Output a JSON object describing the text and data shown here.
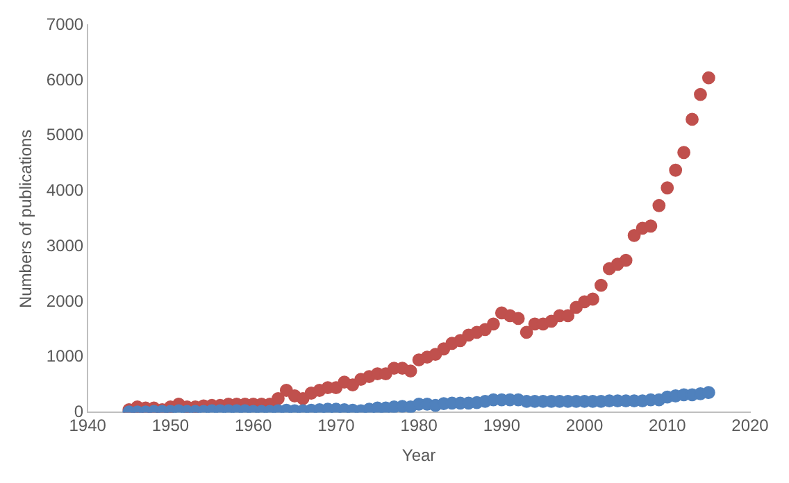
{
  "chart_data": {
    "type": "scatter",
    "xlabel": "Year",
    "ylabel": "Numbers of publications",
    "x": [
      1945,
      1946,
      1947,
      1948,
      1949,
      1950,
      1951,
      1952,
      1953,
      1954,
      1955,
      1956,
      1957,
      1958,
      1959,
      1960,
      1961,
      1962,
      1963,
      1964,
      1965,
      1966,
      1967,
      1968,
      1969,
      1970,
      1971,
      1972,
      1973,
      1974,
      1975,
      1976,
      1977,
      1978,
      1979,
      1980,
      1981,
      1982,
      1983,
      1984,
      1985,
      1986,
      1987,
      1988,
      1989,
      1990,
      1991,
      1992,
      1993,
      1994,
      1995,
      1996,
      1997,
      1998,
      1999,
      2000,
      2001,
      2002,
      2003,
      2004,
      2005,
      2006,
      2007,
      2008,
      2009,
      2010,
      2011,
      2012,
      2013,
      2014,
      2015
    ],
    "series": [
      {
        "color": "#c0504d",
        "values": [
          50,
          100,
          80,
          80,
          50,
          100,
          150,
          100,
          100,
          120,
          130,
          130,
          150,
          150,
          150,
          150,
          150,
          150,
          250,
          400,
          300,
          250,
          350,
          400,
          450,
          450,
          550,
          500,
          600,
          650,
          700,
          700,
          800,
          800,
          750,
          950,
          1000,
          1050,
          1150,
          1250,
          1300,
          1400,
          1450,
          1500,
          1600,
          1800,
          1750,
          1700,
          1450,
          1600,
          1600,
          1650,
          1750,
          1750,
          1900,
          2000,
          2050,
          2300,
          2600,
          2680,
          2750,
          3200,
          3330,
          3370,
          3740,
          4060,
          4380,
          4700,
          5300,
          5750,
          6050
        ]
      },
      {
        "color": "#4f81bd",
        "values": [
          10,
          10,
          10,
          20,
          20,
          20,
          30,
          20,
          20,
          20,
          30,
          30,
          30,
          30,
          30,
          20,
          20,
          20,
          30,
          40,
          30,
          30,
          40,
          50,
          60,
          60,
          50,
          40,
          30,
          60,
          80,
          80,
          100,
          110,
          100,
          150,
          150,
          130,
          160,
          170,
          170,
          170,
          180,
          200,
          230,
          230,
          230,
          230,
          200,
          200,
          200,
          200,
          200,
          200,
          200,
          200,
          200,
          200,
          210,
          210,
          210,
          210,
          210,
          230,
          230,
          280,
          300,
          320,
          320,
          340,
          360
        ]
      }
    ],
    "xlim": [
      1940,
      2020
    ],
    "xticks": [
      1940,
      1950,
      1960,
      1970,
      1980,
      1990,
      2000,
      2010,
      2020
    ],
    "ylim": [
      0,
      7000
    ],
    "yticks": [
      0,
      1000,
      2000,
      3000,
      4000,
      5000,
      6000,
      7000
    ],
    "grid": false,
    "legend": false,
    "marker": "circle"
  }
}
